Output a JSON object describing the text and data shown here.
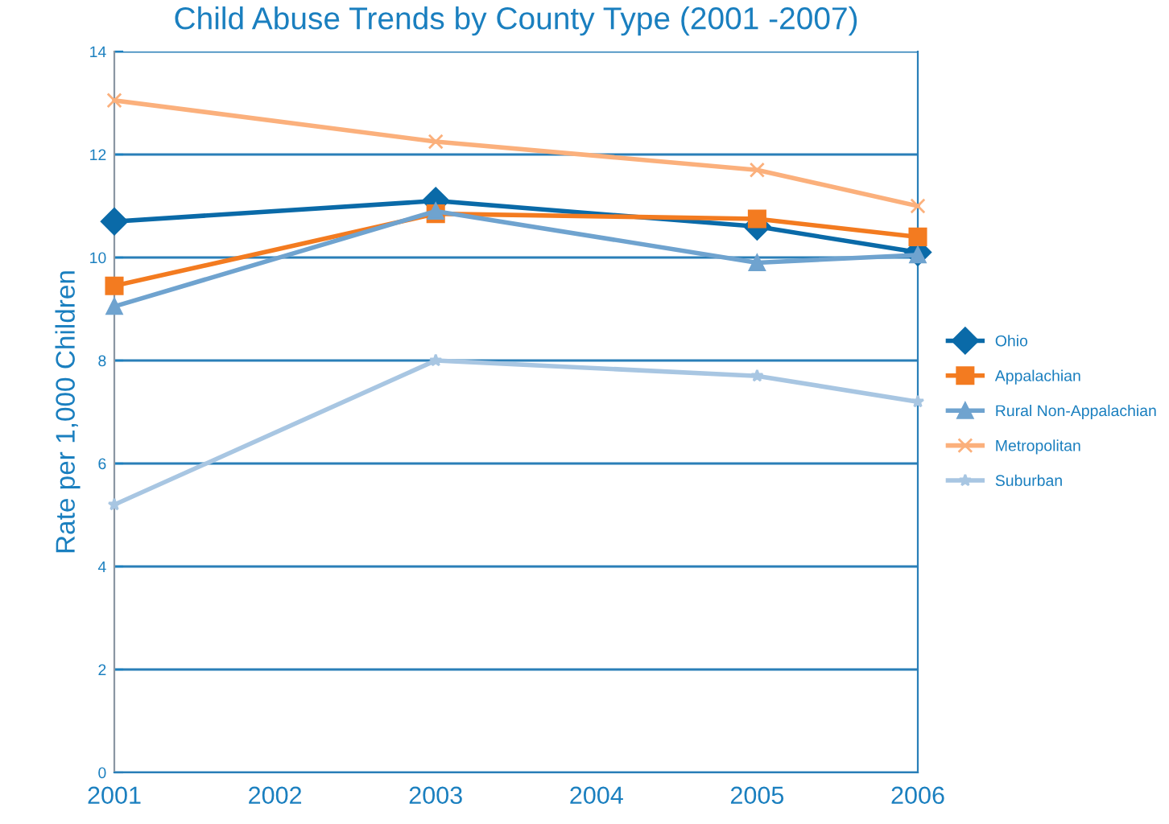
{
  "chart_data": {
    "type": "line",
    "title": "Child Abuse Trends by County Type (2001 -2007)",
    "ylabel": "Rate per 1,000 Children",
    "x": [
      2001,
      2003,
      2005,
      2006
    ],
    "xlim": [
      2001,
      2006
    ],
    "xticks": [
      2001,
      2002,
      2003,
      2004,
      2005,
      2006
    ],
    "ylim": [
      0,
      14
    ],
    "yticks": [
      0,
      2,
      4,
      6,
      8,
      10,
      12,
      14
    ],
    "grid": "y",
    "legend": "right",
    "series": [
      {
        "name": "Ohio",
        "color": "#0a6aa8",
        "marker": "diamond",
        "values": [
          10.7,
          11.1,
          10.6,
          10.1
        ]
      },
      {
        "name": "Appalachian",
        "color": "#f37b20",
        "marker": "square",
        "values": [
          9.45,
          10.85,
          10.75,
          10.4
        ]
      },
      {
        "name": "Rural Non-Appalachian",
        "color": "#6fa3cf",
        "marker": "triangle",
        "values": [
          9.05,
          10.9,
          9.9,
          10.05
        ]
      },
      {
        "name": "Metropolitan",
        "color": "#fbb07c",
        "marker": "cross",
        "values": [
          13.05,
          12.25,
          11.7,
          11.0
        ]
      },
      {
        "name": "Suburban",
        "color": "#a8c6e2",
        "marker": "star",
        "values": [
          5.2,
          8.0,
          7.7,
          7.2
        ]
      }
    ]
  }
}
